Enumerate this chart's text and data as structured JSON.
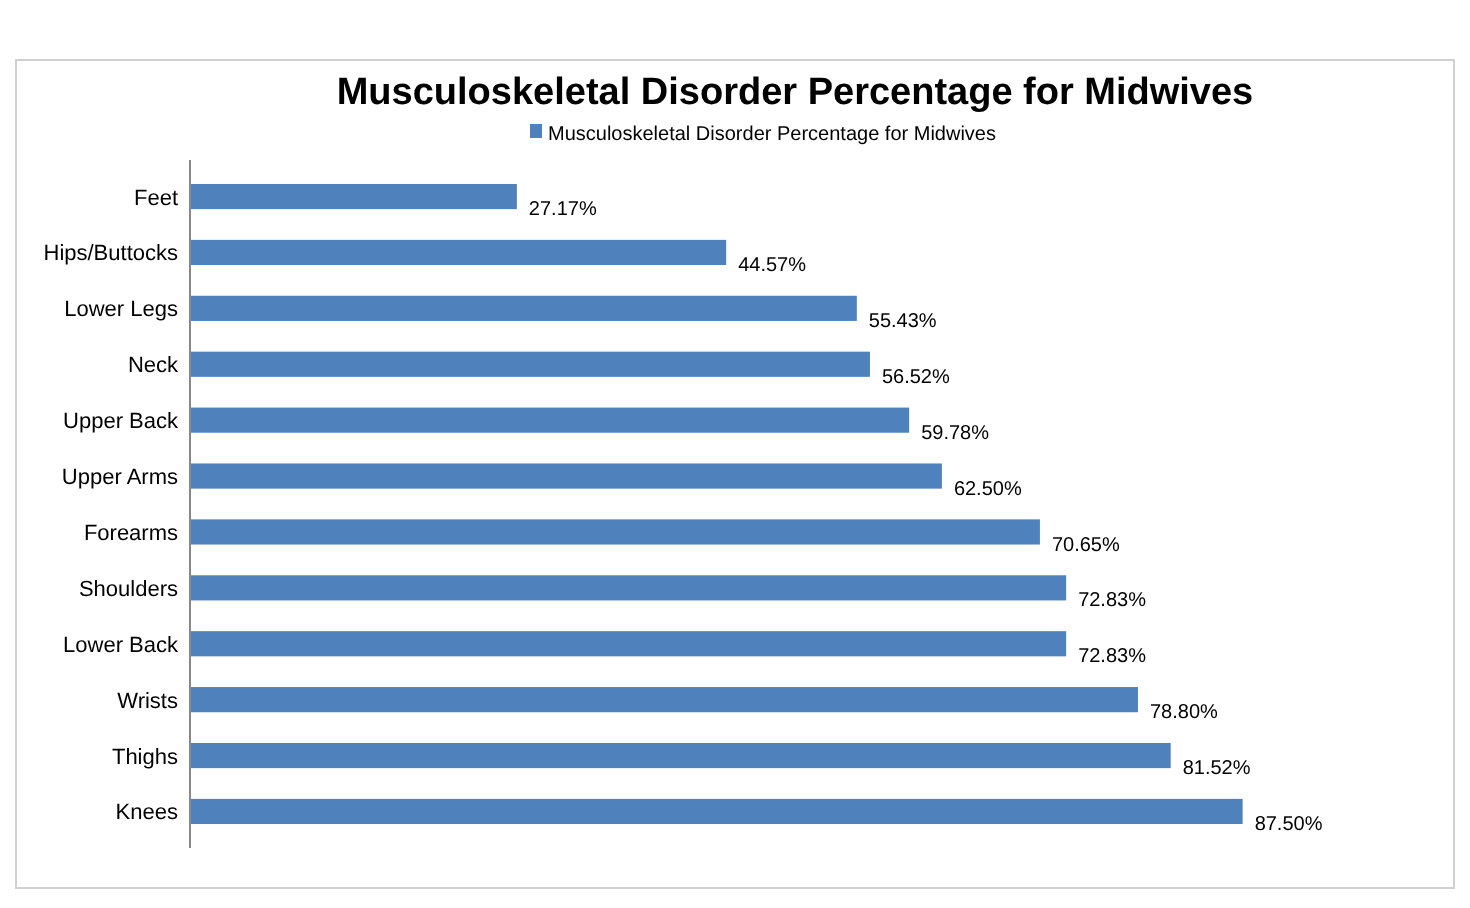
{
  "chart_data": {
    "type": "bar",
    "orientation": "horizontal",
    "title": "Musculoskeletal Disorder Percentage for Midwives",
    "categories": [
      "Feet",
      "Hips/Buttocks",
      "Lower Legs",
      "Neck",
      "Upper Back",
      "Upper Arms",
      "Forearms",
      "Shoulders",
      "Lower Back",
      "Wrists",
      "Thighs",
      "Knees"
    ],
    "series": [
      {
        "name": "Musculoskeletal Disorder Percentage for Midwives",
        "color": "#4f81bd",
        "values": [
          27.17,
          44.57,
          55.43,
          56.52,
          59.78,
          62.5,
          70.65,
          72.83,
          72.83,
          78.8,
          81.52,
          87.5
        ],
        "value_labels": [
          "27.17%",
          "44.57%",
          "55.43%",
          "56.52%",
          "59.78%",
          "62.50%",
          "70.65%",
          "72.83%",
          "72.83%",
          "78.80%",
          "81.52%",
          "87.50%"
        ]
      }
    ],
    "data_labels": true,
    "legend": "top",
    "grid": false
  }
}
